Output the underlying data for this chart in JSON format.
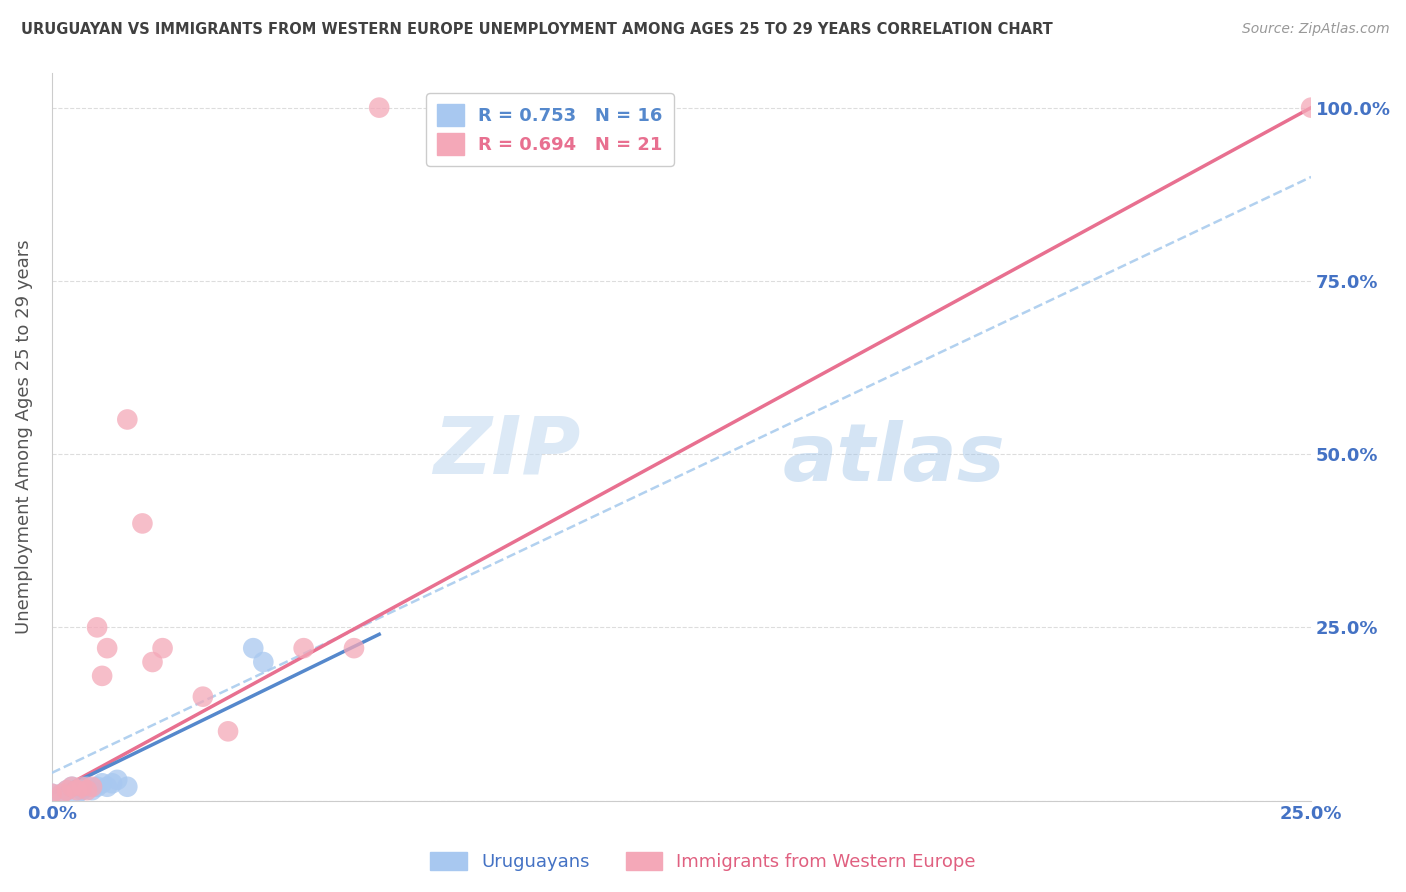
{
  "title": "URUGUAYAN VS IMMIGRANTS FROM WESTERN EUROPE UNEMPLOYMENT AMONG AGES 25 TO 29 YEARS CORRELATION CHART",
  "source": "Source: ZipAtlas.com",
  "ylabel": "Unemployment Among Ages 25 to 29 years",
  "xlabel": "",
  "xlim": [
    0,
    0.25
  ],
  "ylim": [
    0,
    1.05
  ],
  "yticks": [
    0,
    0.25,
    0.5,
    0.75,
    1.0
  ],
  "ytick_labels": [
    "",
    "25.0%",
    "50.0%",
    "75.0%",
    "100.0%"
  ],
  "xticks": [
    0,
    0.05,
    0.1,
    0.15,
    0.2,
    0.25
  ],
  "xtick_labels": [
    "0.0%",
    "",
    "",
    "",
    "",
    "25.0%"
  ],
  "uruguayan_x": [
    0.0,
    0.002,
    0.003,
    0.004,
    0.005,
    0.006,
    0.007,
    0.008,
    0.009,
    0.01,
    0.011,
    0.012,
    0.013,
    0.015,
    0.04,
    0.042
  ],
  "uruguayan_y": [
    0.01,
    0.01,
    0.015,
    0.02,
    0.01,
    0.015,
    0.02,
    0.015,
    0.02,
    0.025,
    0.02,
    0.025,
    0.03,
    0.02,
    0.22,
    0.2
  ],
  "immigrant_x": [
    0.0,
    0.002,
    0.003,
    0.004,
    0.005,
    0.006,
    0.007,
    0.008,
    0.009,
    0.01,
    0.011,
    0.015,
    0.018,
    0.02,
    0.022,
    0.03,
    0.035,
    0.05,
    0.06,
    0.065,
    0.25
  ],
  "immigrant_y": [
    0.01,
    0.01,
    0.015,
    0.02,
    0.015,
    0.02,
    0.015,
    0.02,
    0.25,
    0.18,
    0.22,
    0.55,
    0.4,
    0.2,
    0.22,
    0.15,
    0.1,
    0.22,
    0.22,
    1.0,
    1.0
  ],
  "blue_color": "#A8C8F0",
  "pink_color": "#F4A8B8",
  "blue_line_color": "#5588CC",
  "pink_line_color": "#E87090",
  "dash_color": "#AACCEE",
  "R_uruguayan": 0.753,
  "N_uruguayan": 16,
  "R_immigrant": 0.694,
  "N_immigrant": 21,
  "watermark_zip": "ZIP",
  "watermark_atlas": "atlas",
  "background_color": "#FFFFFF",
  "grid_color": "#DDDDDD",
  "title_color": "#404040",
  "axis_label_color": "#555555",
  "tick_color": "#4472C4",
  "legend_label_blue": "R = 0.753   N = 16",
  "legend_label_pink": "R = 0.694   N = 21",
  "pink_line_x0": 0.0,
  "pink_line_y0": 0.01,
  "pink_line_x1": 0.25,
  "pink_line_y1": 1.0,
  "blue_line_x0": 0.0,
  "blue_line_y0": 0.01,
  "blue_line_x1": 0.065,
  "blue_line_y1": 0.24,
  "dash_line_x0": 0.0,
  "dash_line_y0": 0.04,
  "dash_line_x1": 0.25,
  "dash_line_y1": 0.9
}
